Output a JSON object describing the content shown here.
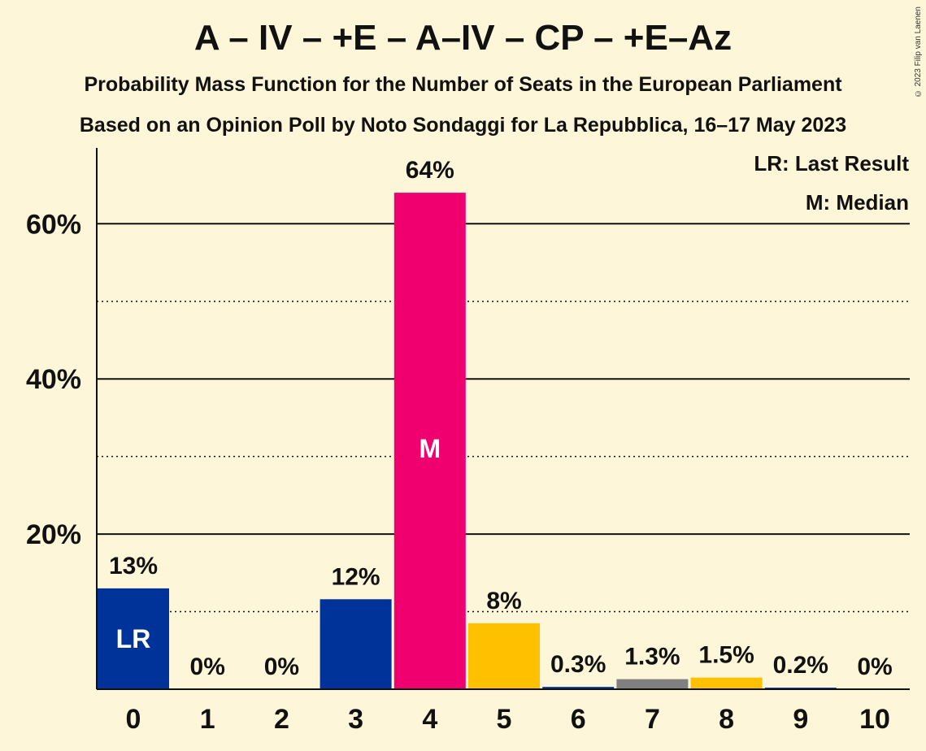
{
  "title": "A – IV – +E – A–IV – CP – +E–Az",
  "subtitle_1": "Probability Mass Function for the Number of Seats in the European Parliament",
  "subtitle_2": "Based on an Opinion Poll by Noto Sondaggi for La Repubblica, 16–17 May 2023",
  "copyright": "© 2023 Filip van Laenen",
  "legend": {
    "last_result": "LR: Last Result",
    "median": "M: Median"
  },
  "colors": {
    "background": "#fdf6d8",
    "blue": "#003399",
    "pink": "#f0006e",
    "yellow": "#ffc000",
    "gray": "#808080"
  },
  "chart_data": {
    "type": "bar",
    "categories": [
      "0",
      "1",
      "2",
      "3",
      "4",
      "5",
      "6",
      "7",
      "8",
      "9",
      "10"
    ],
    "values": [
      13,
      0,
      0,
      11.6,
      64,
      8.5,
      0.3,
      1.3,
      1.5,
      0.2,
      0
    ],
    "value_labels": [
      "13%",
      "0%",
      "0%",
      "12%",
      "64%",
      "8%",
      "0.3%",
      "1.3%",
      "1.5%",
      "0.2%",
      "0%"
    ],
    "bar_colors": [
      "#003399",
      "#003399",
      "#003399",
      "#003399",
      "#f0006e",
      "#ffc000",
      "#003399",
      "#808080",
      "#ffc000",
      "#003399",
      "#003399"
    ],
    "bar_marks": {
      "0": "LR",
      "4": "M"
    },
    "yticks": [
      20,
      40,
      60
    ],
    "ytick_labels": [
      "20%",
      "40%",
      "60%"
    ],
    "minor_gridlines": [
      10,
      30,
      50
    ],
    "ylim": [
      0,
      70
    ],
    "xlabel": "",
    "ylabel": ""
  }
}
